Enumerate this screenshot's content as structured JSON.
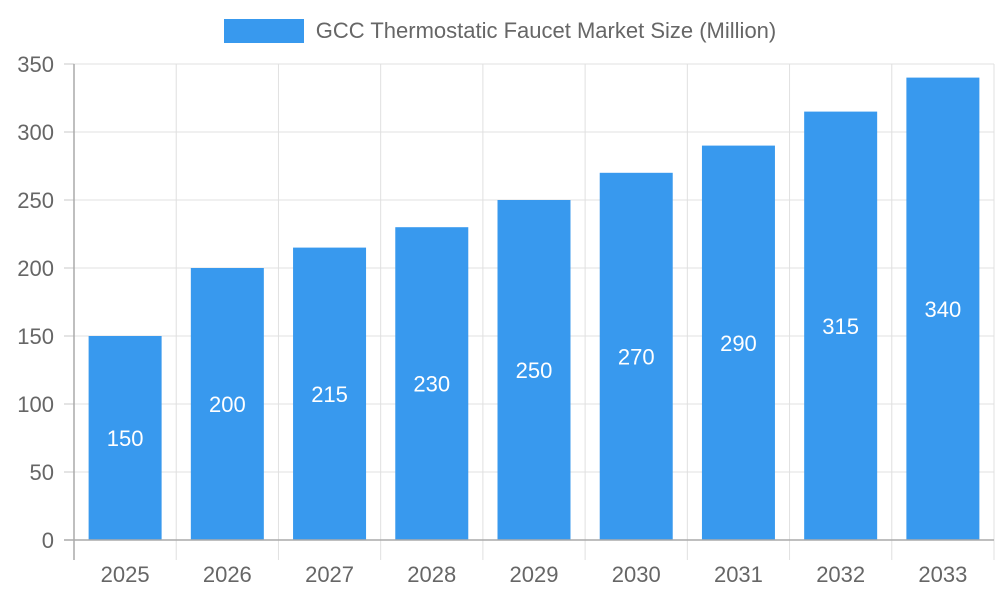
{
  "chart_data": {
    "type": "bar",
    "title": "",
    "legend": [
      "GCC Thermostatic Faucet Market Size (Million)"
    ],
    "legend_position": "top",
    "categories": [
      "2025",
      "2026",
      "2027",
      "2028",
      "2029",
      "2030",
      "2031",
      "2032",
      "2033"
    ],
    "series": [
      {
        "name": "GCC Thermostatic Faucet Market Size (Million)",
        "values": [
          150,
          200,
          215,
          230,
          250,
          270,
          290,
          315,
          340
        ],
        "color": "#3899ee"
      }
    ],
    "xlabel": "",
    "ylabel": "",
    "ylim": [
      0,
      350
    ],
    "yticks": [
      0,
      50,
      100,
      150,
      200,
      250,
      300,
      350
    ],
    "grid": true,
    "data_labels": true
  },
  "legend": {
    "label": "GCC Thermostatic Faucet Market Size (Million)",
    "color": "#3899ee"
  }
}
